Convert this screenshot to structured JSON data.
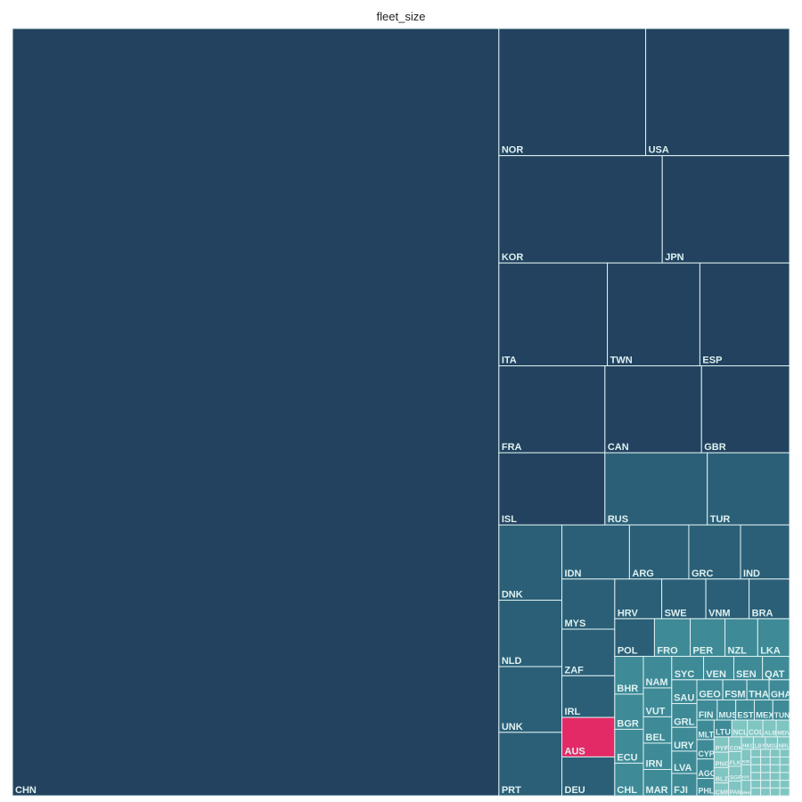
{
  "chart_data": {
    "type": "treemap",
    "title": "fleet_size",
    "colors": {
      "large": "#22425f",
      "medium": "#2b5f77",
      "small": "#3e8a97",
      "tiny": "#7fc5c2",
      "highlight": "#e42a66",
      "border": "#dff1f1",
      "label": "#dff1f1"
    },
    "highlighted": "AUS",
    "unlabeled_small_cells": 24,
    "unlabeled_small_value": 0.2,
    "items": [
      {
        "name": "CHN",
        "value": 1000
      },
      {
        "name": "NOR",
        "value": 50
      },
      {
        "name": "USA",
        "value": 49
      },
      {
        "name": "KOR",
        "value": 47
      },
      {
        "name": "TWN",
        "value": 25.5
      },
      {
        "name": "ESP",
        "value": 24.7
      },
      {
        "name": "JPN",
        "value": 36.6
      },
      {
        "name": "ITA",
        "value": 29.9
      },
      {
        "name": "FRA",
        "value": 24.7
      },
      {
        "name": "GBR",
        "value": 20.5
      },
      {
        "name": "CAN",
        "value": 22.5
      },
      {
        "name": "ISL",
        "value": 20.5
      },
      {
        "name": "RUS",
        "value": 19.8
      },
      {
        "name": "TUR",
        "value": 15.9
      },
      {
        "name": "DNK",
        "value": 12.7
      },
      {
        "name": "NLD",
        "value": 11.2
      },
      {
        "name": "UNK",
        "value": 11.1
      },
      {
        "name": "PRT",
        "value": 10.7
      },
      {
        "name": "IDN",
        "value": 9.8
      },
      {
        "name": "ARG",
        "value": 8.6
      },
      {
        "name": "GRC",
        "value": 7.5
      },
      {
        "name": "IND",
        "value": 7.1
      },
      {
        "name": "MYS",
        "value": 7.1
      },
      {
        "name": "ZAF",
        "value": 6.6
      },
      {
        "name": "IRL",
        "value": 5.9
      },
      {
        "name": "AUS",
        "value": 5.6
      },
      {
        "name": "DEU",
        "value": 5.5
      },
      {
        "name": "HRV",
        "value": 5.0
      },
      {
        "name": "SWE",
        "value": 4.7
      },
      {
        "name": "VNM",
        "value": 4.6
      },
      {
        "name": "BRA",
        "value": 4.3
      },
      {
        "name": "POL",
        "value": 4.0
      },
      {
        "name": "FRO",
        "value": 3.6
      },
      {
        "name": "PER",
        "value": 3.5
      },
      {
        "name": "NZL",
        "value": 3.3
      },
      {
        "name": "LKA",
        "value": 3.2
      },
      {
        "name": "BHR",
        "value": 2.9
      },
      {
        "name": "BGR",
        "value": 2.7
      },
      {
        "name": "ECU",
        "value": 2.6
      },
      {
        "name": "CHL",
        "value": 2.5
      },
      {
        "name": "NAM",
        "value": 2.4
      },
      {
        "name": "VUT",
        "value": 2.2
      },
      {
        "name": "BEL",
        "value": 2.0
      },
      {
        "name": "IRN",
        "value": 2.0
      },
      {
        "name": "MAR",
        "value": 2.0
      },
      {
        "name": "SYC",
        "value": 2.0
      },
      {
        "name": "VEN",
        "value": 1.9
      },
      {
        "name": "SAU",
        "value": 1.6
      },
      {
        "name": "LVA",
        "value": 1.5
      },
      {
        "name": "FJI",
        "value": 1.5
      },
      {
        "name": "GEO",
        "value": 1.4
      },
      {
        "name": "FSM",
        "value": 1.3
      },
      {
        "name": "SEN",
        "value": 1.8
      },
      {
        "name": "QAT",
        "value": 1.7
      },
      {
        "name": "GRL",
        "value": 1.6
      },
      {
        "name": "URY",
        "value": 1.6
      },
      {
        "name": "GHA",
        "value": 1.1
      },
      {
        "name": "MUS",
        "value": 1.0
      },
      {
        "name": "TUN",
        "value": 0.9
      },
      {
        "name": "PHL",
        "value": 0.8
      },
      {
        "name": "LTU",
        "value": 0.8
      },
      {
        "name": "ALB",
        "value": 0.6
      },
      {
        "name": "CMR",
        "value": 0.5
      },
      {
        "name": "EST",
        "value": 1.0
      },
      {
        "name": "NCL",
        "value": 0.7
      },
      {
        "name": "MDV",
        "value": 0.6
      },
      {
        "name": "PYF",
        "value": 0.6
      },
      {
        "name": "COK",
        "value": 0.5
      },
      {
        "name": "FLK",
        "value": 0.5
      },
      {
        "name": "THA",
        "value": 1.2
      },
      {
        "name": "MEX",
        "value": 1.0
      },
      {
        "name": "PNG",
        "value": 0.6
      },
      {
        "name": "SGP",
        "value": 0.5
      },
      {
        "name": "HKG",
        "value": 0.4
      },
      {
        "name": "LBY",
        "value": 0.4
      },
      {
        "name": "MOZ",
        "value": 0.4
      },
      {
        "name": "FIN",
        "value": 1.1
      },
      {
        "name": "MLT",
        "value": 0.9
      },
      {
        "name": "BLZ",
        "value": 0.6
      },
      {
        "name": "NRU",
        "value": 0.4
      },
      {
        "name": "KIR",
        "value": 0.4
      },
      {
        "name": "ISR",
        "value": 0.4
      },
      {
        "name": "PAN",
        "value": 0.5
      },
      {
        "name": "MHL",
        "value": 0.4
      },
      {
        "name": "CYP",
        "value": 0.9
      },
      {
        "name": "AGO",
        "value": 0.9
      },
      {
        "name": "COL",
        "value": 0.7
      }
    ]
  }
}
